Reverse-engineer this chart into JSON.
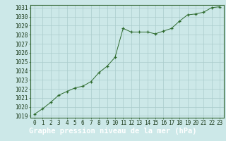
{
  "x": [
    0,
    1,
    2,
    3,
    4,
    5,
    6,
    7,
    8,
    9,
    10,
    11,
    12,
    13,
    14,
    15,
    16,
    17,
    18,
    19,
    20,
    21,
    22,
    23
  ],
  "y": [
    1019.2,
    1019.8,
    1020.5,
    1021.3,
    1021.7,
    1022.1,
    1022.3,
    1022.8,
    1023.8,
    1024.5,
    1025.5,
    1028.7,
    1028.3,
    1028.3,
    1028.3,
    1028.1,
    1028.4,
    1028.7,
    1029.5,
    1030.2,
    1030.3,
    1030.5,
    1031.0,
    1031.1
  ],
  "ylim_min": 1019,
  "ylim_max": 1031,
  "yticks": [
    1019,
    1020,
    1021,
    1022,
    1023,
    1024,
    1025,
    1026,
    1027,
    1028,
    1029,
    1030,
    1031
  ],
  "xticks": [
    0,
    1,
    2,
    3,
    4,
    5,
    6,
    7,
    8,
    9,
    10,
    11,
    12,
    13,
    14,
    15,
    16,
    17,
    18,
    19,
    20,
    21,
    22,
    23
  ],
  "line_color": "#2d6a2d",
  "marker_color": "#2d6a2d",
  "bg_color": "#cce8e8",
  "grid_color": "#aacccc",
  "xlabel": "Graphe pression niveau de la mer (hPa)",
  "xlabel_bg": "#336633",
  "tick_color": "#1a3a1a",
  "tick_fontsize": 5.5,
  "xlabel_fontsize": 7.5,
  "border_color": "#336633"
}
